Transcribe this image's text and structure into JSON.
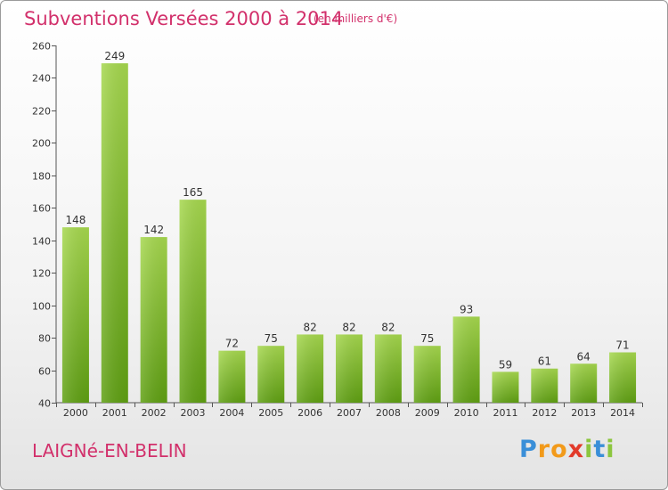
{
  "header": {
    "title": "Subventions Versées 2000 à 2014",
    "unit_note": "(en milliers d'€)"
  },
  "footer": {
    "commune": "LAIGNé-EN-BELIN",
    "brand_letters": [
      "P",
      "r",
      "o",
      "x",
      "i",
      "t",
      "i"
    ],
    "brand_colors": [
      "#3a8fd8",
      "#f29a1a",
      "#f29a1a",
      "#e23a2a",
      "#8cc63f",
      "#3a8fd8",
      "#8cc63f"
    ]
  },
  "chart_data": {
    "type": "bar",
    "title": "Subventions Versées 2000 à 2014",
    "subtitle": "(en milliers d'€)",
    "categories": [
      "2000",
      "2001",
      "2002",
      "2003",
      "2004",
      "2005",
      "2006",
      "2007",
      "2008",
      "2009",
      "2010",
      "2011",
      "2012",
      "2013",
      "2014"
    ],
    "values": [
      148,
      249,
      142,
      165,
      72,
      75,
      82,
      82,
      82,
      75,
      93,
      59,
      61,
      64,
      71
    ],
    "ylim": [
      40,
      260
    ],
    "yticks": [
      40,
      60,
      80,
      100,
      120,
      140,
      160,
      180,
      200,
      220,
      240,
      260
    ],
    "bar_color_top": "#a6d84e",
    "bar_color_bottom": "#5fa012",
    "grid": false
  }
}
